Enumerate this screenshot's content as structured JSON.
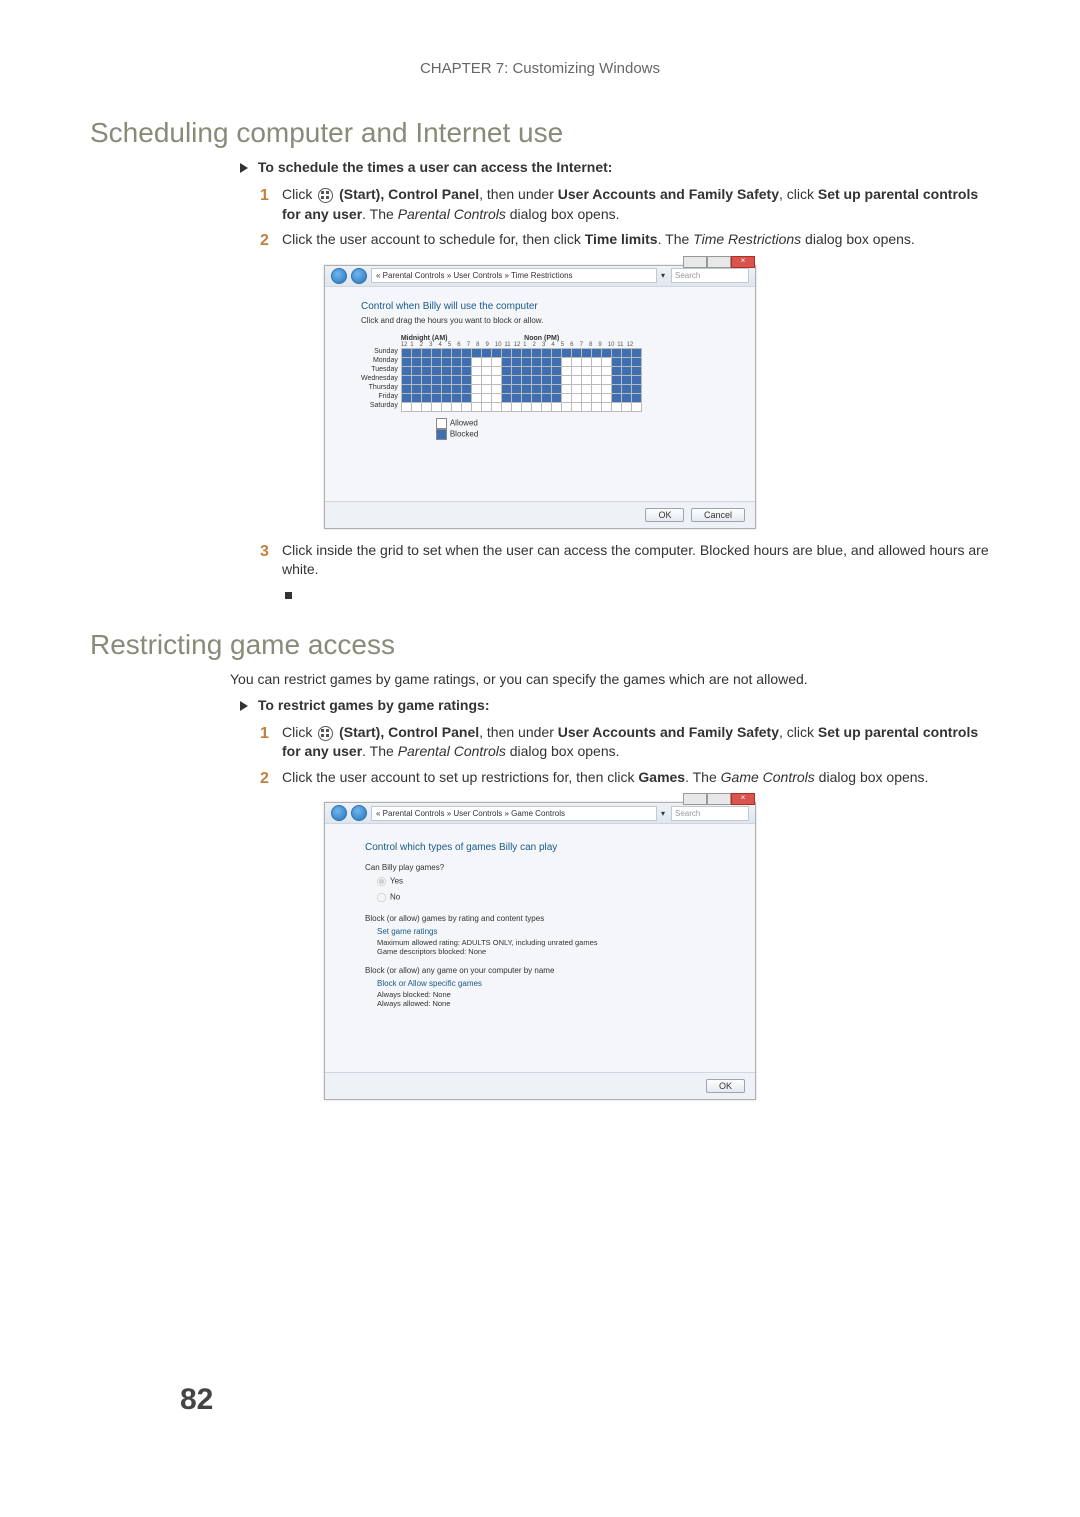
{
  "chapter_header": "CHAPTER 7: Customizing Windows",
  "section1_title": "Scheduling computer and Internet use",
  "task1_title": "To schedule the times a user can access the Internet:",
  "s1_step1_a": "Click ",
  "s1_step1_b": " (Start), Control Panel",
  "s1_step1_c": ", then under ",
  "s1_step1_d": "User Accounts and Family Safety",
  "s1_step1_e": ", click ",
  "s1_step1_f": "Set up parental controls for any user",
  "s1_step1_g": ". The ",
  "s1_step1_h": "Parental Controls",
  "s1_step1_i": " dialog box opens.",
  "s1_step2_a": "Click the user account to schedule for, then click ",
  "s1_step2_b": "Time limits",
  "s1_step2_c": ". The ",
  "s1_step2_d": "Time Restrictions",
  "s1_step2_e": " dialog box opens.",
  "s1_step3": "Click inside the grid to set when the user can access the computer. Blocked hours are blue, and allowed hours are white.",
  "section2_title": "Restricting game access",
  "intro2": "You can restrict games by game ratings, or you can specify the games which are not allowed.",
  "task2_title": "To restrict games by game ratings:",
  "s2_step2_a": "Click the user account to set up restrictions for, then click ",
  "s2_step2_b": "Games",
  "s2_step2_c": ". The ",
  "s2_step2_d": "Game Controls",
  "s2_step2_e": " dialog box opens.",
  "page_number": "82",
  "screenshot1": {
    "breadcrumb": "« Parental Controls » User Controls » Time Restrictions",
    "search_placeholder": "Search",
    "heading": "Control when Billy will use the computer",
    "sub": "Click and drag the hours you want to block or allow.",
    "midnight_label": "Midnight (AM)",
    "noon_label": "Noon (PM)",
    "hours": [
      "12",
      "1",
      "2",
      "3",
      "4",
      "5",
      "6",
      "7",
      "8",
      "9",
      "10",
      "11",
      "12",
      "1",
      "2",
      "3",
      "4",
      "5",
      "6",
      "7",
      "8",
      "9",
      "10",
      "11",
      "12"
    ],
    "days": [
      "Sunday",
      "Monday",
      "Tuesday",
      "Wednesday",
      "Thursday",
      "Friday",
      "Saturday"
    ],
    "grid": [
      [
        1,
        1,
        1,
        1,
        1,
        1,
        1,
        1,
        1,
        1,
        1,
        1,
        1,
        1,
        1,
        1,
        1,
        1,
        1,
        1,
        1,
        1,
        1,
        1
      ],
      [
        1,
        1,
        1,
        1,
        1,
        1,
        1,
        0,
        0,
        0,
        1,
        1,
        1,
        1,
        1,
        1,
        0,
        0,
        0,
        0,
        0,
        1,
        1,
        1
      ],
      [
        1,
        1,
        1,
        1,
        1,
        1,
        1,
        0,
        0,
        0,
        1,
        1,
        1,
        1,
        1,
        1,
        0,
        0,
        0,
        0,
        0,
        1,
        1,
        1
      ],
      [
        1,
        1,
        1,
        1,
        1,
        1,
        1,
        0,
        0,
        0,
        1,
        1,
        1,
        1,
        1,
        1,
        0,
        0,
        0,
        0,
        0,
        1,
        1,
        1
      ],
      [
        1,
        1,
        1,
        1,
        1,
        1,
        1,
        0,
        0,
        0,
        1,
        1,
        1,
        1,
        1,
        1,
        0,
        0,
        0,
        0,
        0,
        1,
        1,
        1
      ],
      [
        1,
        1,
        1,
        1,
        1,
        1,
        1,
        0,
        0,
        0,
        1,
        1,
        1,
        1,
        1,
        1,
        0,
        0,
        0,
        0,
        0,
        1,
        1,
        1
      ],
      [
        0,
        0,
        0,
        0,
        0,
        0,
        0,
        0,
        0,
        0,
        0,
        0,
        0,
        0,
        0,
        0,
        0,
        0,
        0,
        0,
        0,
        0,
        0,
        0
      ]
    ],
    "legend_allowed": "Allowed",
    "legend_blocked": "Blocked",
    "btn_ok": "OK",
    "btn_cancel": "Cancel",
    "colors": {
      "blocked": "#3f6fb0",
      "allowed": "#ffffff",
      "grid_border": "#bbbbbb"
    }
  },
  "screenshot2": {
    "breadcrumb": "« Parental Controls » User Controls » Game Controls",
    "search_placeholder": "Search",
    "heading": "Control which types of games Billy can play",
    "q1": "Can Billy play games?",
    "opt_yes": "Yes",
    "opt_no": "No",
    "sec2": "Block (or allow) games by rating and content types",
    "link1": "Set game ratings",
    "detail1": "Maximum allowed rating: ADULTS ONLY, including unrated games",
    "detail2": "Game descriptors blocked: None",
    "sec3": "Block (or allow) any game on your computer by name",
    "link2": "Block or Allow specific games",
    "detail3": "Always blocked: None",
    "detail4": "Always allowed: None",
    "btn_ok": "OK"
  }
}
